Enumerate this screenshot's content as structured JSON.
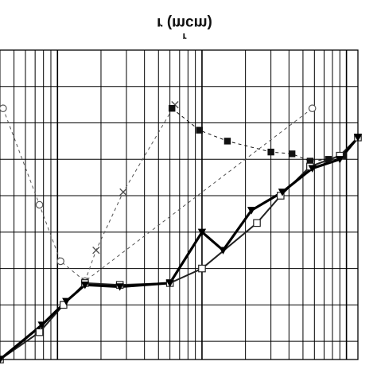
{
  "chart_data": {
    "type": "line",
    "xscale": "log",
    "xlim": [
      0.04,
      12
    ],
    "ylim": [
      2.7,
      1.0
    ],
    "xlabel_mirrored": "r (mcm)",
    "x_marker": "r",
    "grid": true,
    "legend": "none",
    "series": [
      {
        "marker": "open-circle",
        "line": "dashed",
        "color": "#555555",
        "points": [
          [
            0.042,
            1.32
          ],
          [
            0.075,
            1.85
          ],
          [
            0.105,
            2.16
          ],
          [
            0.155,
            2.27
          ],
          [
            5.8,
            1.32
          ]
        ]
      },
      {
        "marker": "cross",
        "line": "dashed",
        "color": "#555555",
        "points": [
          [
            0.155,
            2.27
          ],
          [
            0.185,
            2.1
          ],
          [
            0.285,
            1.78
          ],
          [
            0.65,
            1.3
          ]
        ]
      },
      {
        "marker": "filled-square",
        "line": "dashed",
        "color": "#111111",
        "points": [
          [
            0.62,
            1.32
          ],
          [
            0.96,
            1.44
          ],
          [
            1.5,
            1.5
          ],
          [
            3.0,
            1.56
          ],
          [
            4.2,
            1.57
          ],
          [
            5.6,
            1.61
          ],
          [
            7.5,
            1.6
          ],
          [
            9.5,
            1.58
          ],
          [
            12,
            1.48
          ]
        ]
      },
      {
        "marker": "open-square",
        "line": "solid",
        "color": "#222222",
        "points": [
          [
            0.04,
            2.7
          ],
          [
            0.075,
            2.55
          ],
          [
            0.11,
            2.4
          ],
          [
            0.155,
            2.28
          ],
          [
            0.27,
            2.29
          ],
          [
            0.6,
            2.28
          ],
          [
            1.0,
            2.2
          ],
          [
            2.4,
            1.95
          ],
          [
            3.5,
            1.8
          ],
          [
            5.6,
            1.64
          ],
          [
            9.0,
            1.58
          ],
          [
            12,
            1.48
          ]
        ]
      },
      {
        "marker": "filled-triangle-down",
        "line": "solid-thick",
        "color": "#000000",
        "points": [
          [
            0.04,
            2.7
          ],
          [
            0.078,
            2.51
          ],
          [
            0.115,
            2.38
          ],
          [
            0.155,
            2.29
          ],
          [
            0.27,
            2.3
          ],
          [
            0.6,
            2.28
          ],
          [
            1.0,
            2.0
          ],
          [
            1.4,
            2.1
          ],
          [
            2.2,
            1.88
          ],
          [
            3.6,
            1.78
          ],
          [
            5.8,
            1.65
          ],
          [
            9.0,
            1.6
          ],
          [
            12,
            1.48
          ]
        ]
      }
    ]
  }
}
